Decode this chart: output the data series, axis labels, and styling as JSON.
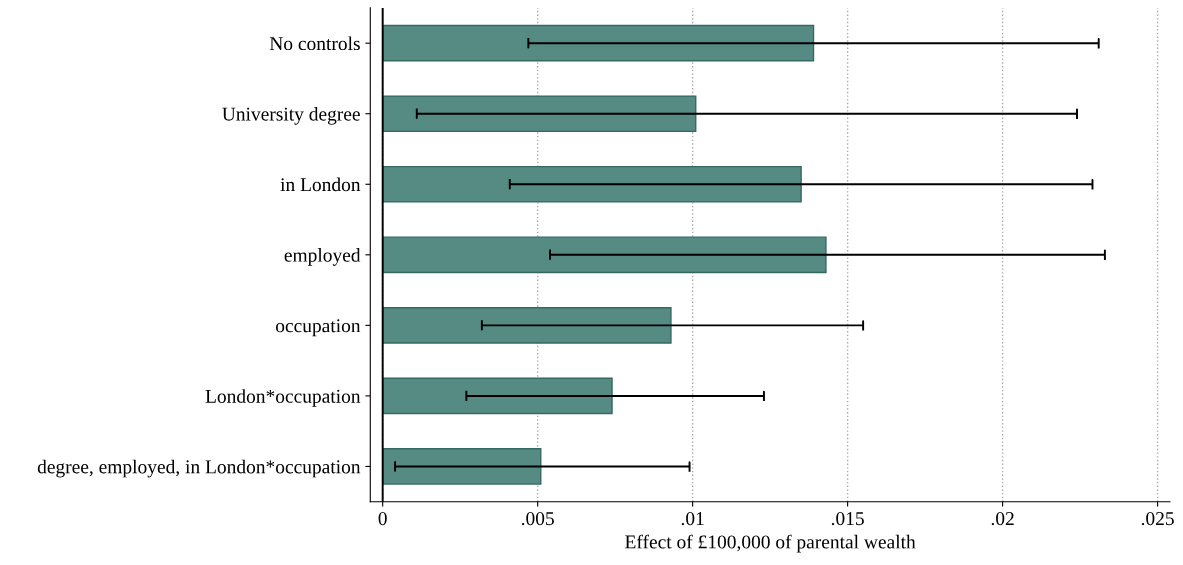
{
  "chart_data": {
    "type": "bar",
    "orientation": "horizontal",
    "xlabel": "Effect of £100,000 of parental wealth",
    "categories": [
      "No controls",
      "University degree",
      "in London",
      "employed",
      "occupation",
      "London*occupation",
      "degree, employed, in London*occupation"
    ],
    "values": [
      0.0139,
      0.0101,
      0.0135,
      0.0143,
      0.0093,
      0.0074,
      0.0051
    ],
    "errors": [
      [
        0.0047,
        0.0231
      ],
      [
        0.0011,
        0.0224
      ],
      [
        0.0041,
        0.0229
      ],
      [
        0.0054,
        0.0233
      ],
      [
        0.0032,
        0.0155
      ],
      [
        0.0027,
        0.0123
      ],
      [
        0.0004,
        0.0099
      ]
    ],
    "color": "#568b84",
    "xlim": [
      -0.0004,
      0.0254
    ],
    "xticks": [
      {
        "value": 0,
        "label": "0"
      },
      {
        "value": 0.005,
        "label": ".005"
      },
      {
        "value": 0.01,
        "label": ".01"
      },
      {
        "value": 0.015,
        "label": ".015"
      },
      {
        "value": 0.02,
        "label": ".02"
      },
      {
        "value": 0.025,
        "label": ".025"
      }
    ],
    "ref_lines": [
      {
        "axis": "x",
        "value": 0,
        "color": "#000000",
        "line_style": "solid"
      }
    ],
    "grid": "x"
  }
}
